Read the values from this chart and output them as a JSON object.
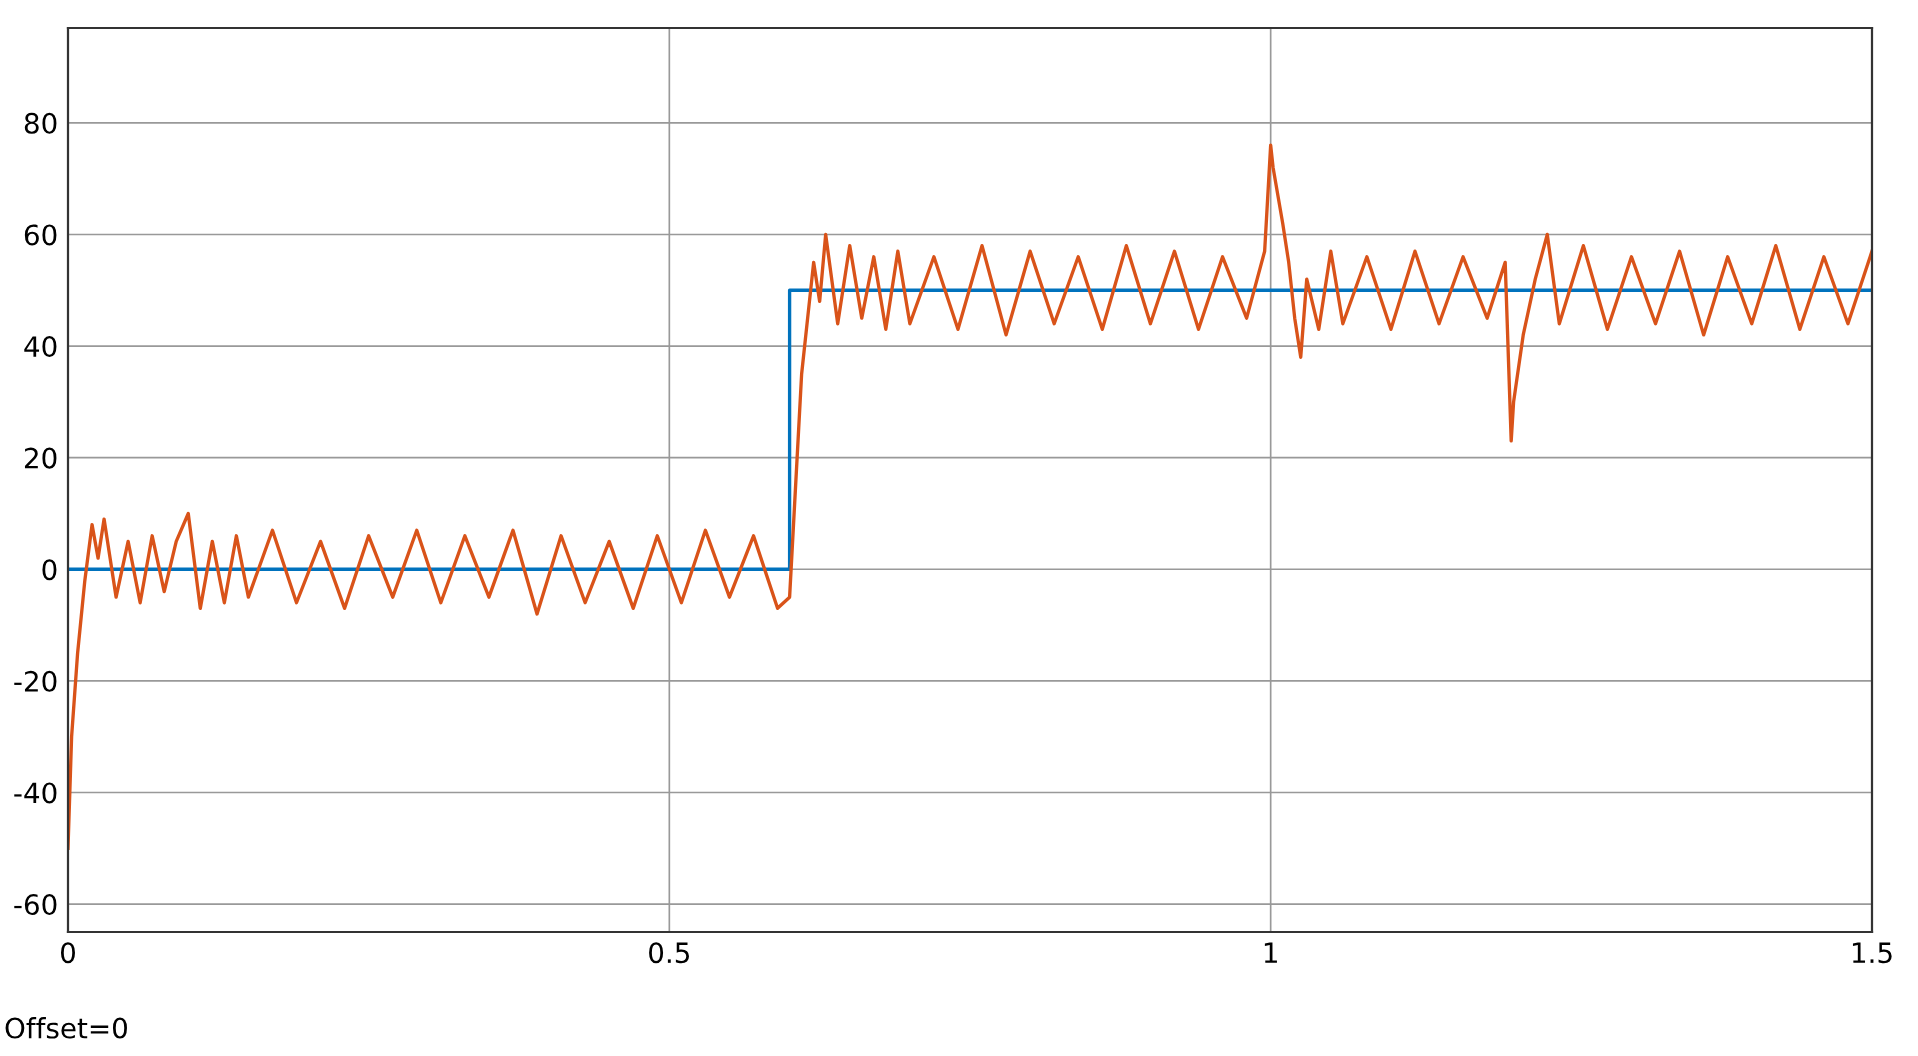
{
  "chart_data": {
    "type": "line",
    "xlim": [
      0,
      1.5
    ],
    "ylim": [
      -65,
      97
    ],
    "xticks": [
      0,
      0.5,
      1,
      1.5
    ],
    "yticks": [
      -60,
      -40,
      -20,
      0,
      20,
      40,
      60,
      80
    ],
    "grid": true,
    "annotations": [
      "Offset=0"
    ],
    "series": [
      {
        "color": "#0072bd",
        "x": [
          0,
          0.6,
          0.6,
          1.5
        ],
        "values": [
          0,
          0,
          50,
          50
        ]
      },
      {
        "color": "#d95319",
        "x": [
          0,
          0.003,
          0.008,
          0.014,
          0.02,
          0.025,
          0.03,
          0.04,
          0.05,
          0.06,
          0.07,
          0.08,
          0.09,
          0.1,
          0.11,
          0.12,
          0.13,
          0.14,
          0.15,
          0.17,
          0.19,
          0.21,
          0.23,
          0.25,
          0.27,
          0.29,
          0.31,
          0.33,
          0.35,
          0.37,
          0.39,
          0.41,
          0.43,
          0.45,
          0.47,
          0.49,
          0.51,
          0.53,
          0.55,
          0.57,
          0.59,
          0.6,
          0.605,
          0.61,
          0.615,
          0.62,
          0.625,
          0.63,
          0.64,
          0.65,
          0.66,
          0.67,
          0.68,
          0.69,
          0.7,
          0.72,
          0.74,
          0.76,
          0.78,
          0.8,
          0.82,
          0.84,
          0.86,
          0.88,
          0.9,
          0.92,
          0.94,
          0.96,
          0.98,
          0.995,
          1.0,
          1.002,
          1.01,
          1.015,
          1.02,
          1.025,
          1.03,
          1.04,
          1.05,
          1.06,
          1.08,
          1.1,
          1.12,
          1.14,
          1.16,
          1.18,
          1.195,
          1.2,
          1.202,
          1.21,
          1.22,
          1.23,
          1.24,
          1.26,
          1.28,
          1.3,
          1.32,
          1.34,
          1.36,
          1.38,
          1.4,
          1.42,
          1.44,
          1.46,
          1.48,
          1.5
        ],
        "values": [
          -50,
          -30,
          -15,
          -2,
          8,
          2,
          9,
          -5,
          5,
          -6,
          6,
          -4,
          5,
          10,
          -7,
          5,
          -6,
          6,
          -5,
          7,
          -6,
          5,
          -7,
          6,
          -5,
          7,
          -6,
          6,
          -5,
          7,
          -8,
          6,
          -6,
          5,
          -7,
          6,
          -6,
          7,
          -5,
          6,
          -7,
          -5,
          15,
          35,
          45,
          55,
          48,
          60,
          44,
          58,
          45,
          56,
          43,
          57,
          44,
          56,
          43,
          58,
          42,
          57,
          44,
          56,
          43,
          58,
          44,
          57,
          43,
          56,
          45,
          57,
          76,
          72,
          62,
          55,
          45,
          38,
          52,
          43,
          57,
          44,
          56,
          43,
          57,
          44,
          56,
          45,
          55,
          23,
          30,
          42,
          52,
          60,
          44,
          58,
          43,
          56,
          44,
          57,
          42,
          56,
          44,
          58,
          43,
          56,
          44,
          57
        ]
      }
    ]
  }
}
